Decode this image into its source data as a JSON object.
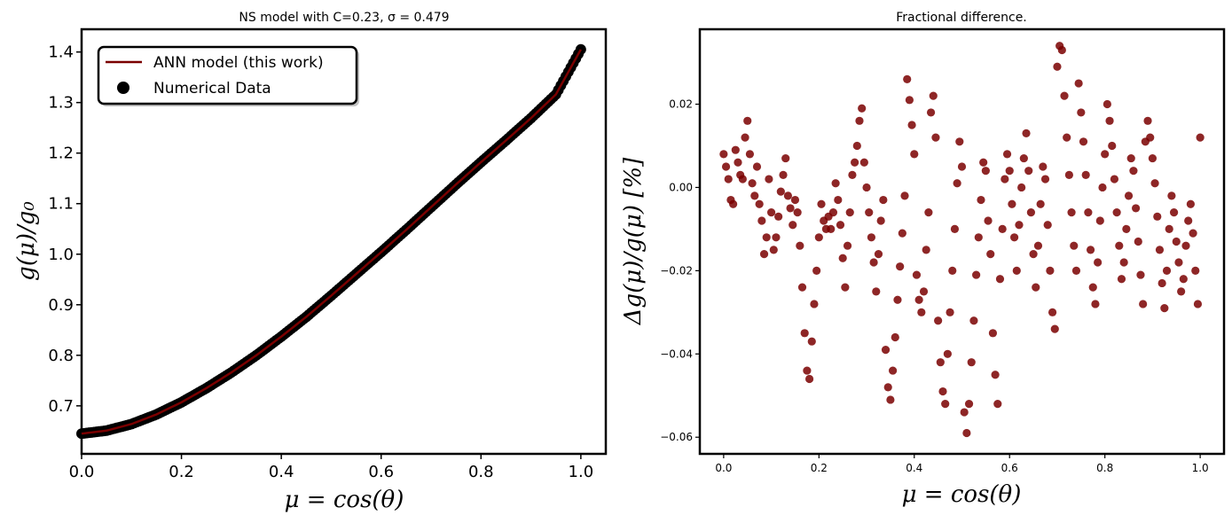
{
  "chart_data": [
    {
      "type": "line",
      "title": "NS model with C=0.23, σ = 0.479",
      "xlabel": "μ = cos(θ)",
      "ylabel": "g(μ)/g₀",
      "xlim": [
        0.0,
        1.05
      ],
      "ylim": [
        0.605,
        1.445
      ],
      "xticks": [
        "0.0",
        "0.2",
        "0.4",
        "0.6",
        "0.8",
        "1.0"
      ],
      "yticks": [
        "0.7",
        "0.8",
        "0.9",
        "1.0",
        "1.1",
        "1.2",
        "1.3",
        "1.4"
      ],
      "grid": false,
      "legend_position": "top-left",
      "series": [
        {
          "name": "ANN model (this work)",
          "kind": "line",
          "color": "#7a0000"
        },
        {
          "name": "Numerical Data",
          "kind": "scatter",
          "color": "#000000"
        }
      ],
      "curve_samples": {
        "x": [
          0.0,
          0.05,
          0.1,
          0.15,
          0.2,
          0.25,
          0.3,
          0.35,
          0.4,
          0.45,
          0.5,
          0.55,
          0.6,
          0.65,
          0.7,
          0.75,
          0.8,
          0.85,
          0.9,
          0.95,
          1.0
        ],
        "y": [
          0.645,
          0.651,
          0.664,
          0.683,
          0.707,
          0.735,
          0.766,
          0.8,
          0.837,
          0.876,
          0.918,
          0.961,
          1.004,
          1.048,
          1.093,
          1.138,
          1.182,
          1.225,
          1.269,
          1.316,
          1.405
        ]
      }
    },
    {
      "type": "scatter",
      "title": "Fractional difference.",
      "xlabel": "μ = cos(θ)",
      "ylabel": "Δg(μ)/g(μ)  [%]",
      "xlim": [
        -0.05,
        1.05
      ],
      "ylim": [
        -0.064,
        0.038
      ],
      "xticks": [
        "0.0",
        "0.2",
        "0.4",
        "0.6",
        "0.8",
        "1.0"
      ],
      "yticks": [
        "−0.06",
        "−0.04",
        "−0.02",
        "0.00",
        "0.02"
      ],
      "grid": false,
      "point_color": "#7a0000",
      "points": [
        [
          0.0,
          0.008
        ],
        [
          0.005,
          0.005
        ],
        [
          0.01,
          0.002
        ],
        [
          0.015,
          -0.003
        ],
        [
          0.02,
          -0.004
        ],
        [
          0.025,
          0.009
        ],
        [
          0.03,
          0.006
        ],
        [
          0.035,
          0.003
        ],
        [
          0.04,
          0.002
        ],
        [
          0.045,
          0.012
        ],
        [
          0.05,
          0.016
        ],
        [
          0.055,
          0.008
        ],
        [
          0.06,
          0.001
        ],
        [
          0.065,
          -0.002
        ],
        [
          0.07,
          0.005
        ],
        [
          0.075,
          -0.004
        ],
        [
          0.08,
          -0.008
        ],
        [
          0.085,
          -0.016
        ],
        [
          0.09,
          -0.012
        ],
        [
          0.095,
          0.002
        ],
        [
          0.1,
          -0.006
        ],
        [
          0.105,
          -0.015
        ],
        [
          0.11,
          -0.012
        ],
        [
          0.115,
          -0.007
        ],
        [
          0.12,
          -0.001
        ],
        [
          0.125,
          0.003
        ],
        [
          0.13,
          0.007
        ],
        [
          0.135,
          -0.002
        ],
        [
          0.14,
          -0.005
        ],
        [
          0.145,
          -0.009
        ],
        [
          0.15,
          -0.003
        ],
        [
          0.155,
          -0.006
        ],
        [
          0.16,
          -0.014
        ],
        [
          0.165,
          -0.024
        ],
        [
          0.17,
          -0.035
        ],
        [
          0.175,
          -0.044
        ],
        [
          0.18,
          -0.046
        ],
        [
          0.185,
          -0.037
        ],
        [
          0.19,
          -0.028
        ],
        [
          0.195,
          -0.02
        ],
        [
          0.2,
          -0.012
        ],
        [
          0.205,
          -0.004
        ],
        [
          0.21,
          -0.008
        ],
        [
          0.215,
          -0.01
        ],
        [
          0.22,
          -0.007
        ],
        [
          0.225,
          -0.01
        ],
        [
          0.23,
          -0.006
        ],
        [
          0.235,
          0.001
        ],
        [
          0.24,
          -0.003
        ],
        [
          0.245,
          -0.009
        ],
        [
          0.25,
          -0.017
        ],
        [
          0.255,
          -0.024
        ],
        [
          0.26,
          -0.014
        ],
        [
          0.265,
          -0.006
        ],
        [
          0.27,
          0.003
        ],
        [
          0.275,
          0.006
        ],
        [
          0.28,
          0.01
        ],
        [
          0.285,
          0.016
        ],
        [
          0.29,
          0.019
        ],
        [
          0.295,
          0.006
        ],
        [
          0.3,
          0.0
        ],
        [
          0.305,
          -0.006
        ],
        [
          0.31,
          -0.012
        ],
        [
          0.315,
          -0.018
        ],
        [
          0.32,
          -0.025
        ],
        [
          0.325,
          -0.016
        ],
        [
          0.33,
          -0.008
        ],
        [
          0.335,
          -0.003
        ],
        [
          0.34,
          -0.039
        ],
        [
          0.345,
          -0.048
        ],
        [
          0.35,
          -0.051
        ],
        [
          0.355,
          -0.044
        ],
        [
          0.36,
          -0.036
        ],
        [
          0.365,
          -0.027
        ],
        [
          0.37,
          -0.019
        ],
        [
          0.375,
          -0.011
        ],
        [
          0.38,
          -0.002
        ],
        [
          0.385,
          0.026
        ],
        [
          0.39,
          0.021
        ],
        [
          0.395,
          0.015
        ],
        [
          0.4,
          0.008
        ],
        [
          0.405,
          -0.021
        ],
        [
          0.41,
          -0.027
        ],
        [
          0.415,
          -0.03
        ],
        [
          0.42,
          -0.025
        ],
        [
          0.425,
          -0.015
        ],
        [
          0.43,
          -0.006
        ],
        [
          0.435,
          0.018
        ],
        [
          0.44,
          0.022
        ],
        [
          0.445,
          0.012
        ],
        [
          0.45,
          -0.032
        ],
        [
          0.455,
          -0.042
        ],
        [
          0.46,
          -0.049
        ],
        [
          0.465,
          -0.052
        ],
        [
          0.47,
          -0.04
        ],
        [
          0.475,
          -0.03
        ],
        [
          0.48,
          -0.02
        ],
        [
          0.485,
          -0.01
        ],
        [
          0.49,
          0.001
        ],
        [
          0.495,
          0.011
        ],
        [
          0.5,
          0.005
        ],
        [
          0.505,
          -0.054
        ],
        [
          0.51,
          -0.059
        ],
        [
          0.515,
          -0.052
        ],
        [
          0.52,
          -0.042
        ],
        [
          0.525,
          -0.032
        ],
        [
          0.53,
          -0.021
        ],
        [
          0.535,
          -0.012
        ],
        [
          0.54,
          -0.003
        ],
        [
          0.545,
          0.006
        ],
        [
          0.55,
          0.004
        ],
        [
          0.555,
          -0.008
        ],
        [
          0.56,
          -0.016
        ],
        [
          0.565,
          -0.035
        ],
        [
          0.57,
          -0.045
        ],
        [
          0.575,
          -0.052
        ],
        [
          0.58,
          -0.022
        ],
        [
          0.585,
          -0.01
        ],
        [
          0.59,
          0.002
        ],
        [
          0.595,
          0.008
        ],
        [
          0.6,
          0.004
        ],
        [
          0.605,
          -0.004
        ],
        [
          0.61,
          -0.012
        ],
        [
          0.615,
          -0.02
        ],
        [
          0.62,
          -0.009
        ],
        [
          0.625,
          0.0
        ],
        [
          0.63,
          0.007
        ],
        [
          0.635,
          0.013
        ],
        [
          0.64,
          0.004
        ],
        [
          0.645,
          -0.006
        ],
        [
          0.65,
          -0.016
        ],
        [
          0.655,
          -0.024
        ],
        [
          0.66,
          -0.014
        ],
        [
          0.665,
          -0.004
        ],
        [
          0.67,
          0.005
        ],
        [
          0.675,
          0.002
        ],
        [
          0.68,
          -0.009
        ],
        [
          0.685,
          -0.02
        ],
        [
          0.69,
          -0.03
        ],
        [
          0.695,
          -0.034
        ],
        [
          0.7,
          0.029
        ],
        [
          0.705,
          0.034
        ],
        [
          0.71,
          0.033
        ],
        [
          0.715,
          0.022
        ],
        [
          0.72,
          0.012
        ],
        [
          0.725,
          0.003
        ],
        [
          0.73,
          -0.006
        ],
        [
          0.735,
          -0.014
        ],
        [
          0.74,
          -0.02
        ],
        [
          0.745,
          0.025
        ],
        [
          0.75,
          0.018
        ],
        [
          0.755,
          0.011
        ],
        [
          0.76,
          0.003
        ],
        [
          0.765,
          -0.006
        ],
        [
          0.77,
          -0.015
        ],
        [
          0.775,
          -0.024
        ],
        [
          0.78,
          -0.028
        ],
        [
          0.785,
          -0.018
        ],
        [
          0.79,
          -0.008
        ],
        [
          0.795,
          0.0
        ],
        [
          0.8,
          0.008
        ],
        [
          0.805,
          0.02
        ],
        [
          0.81,
          0.016
        ],
        [
          0.815,
          0.01
        ],
        [
          0.82,
          0.002
        ],
        [
          0.825,
          -0.006
        ],
        [
          0.83,
          -0.014
        ],
        [
          0.835,
          -0.022
        ],
        [
          0.84,
          -0.018
        ],
        [
          0.845,
          -0.01
        ],
        [
          0.85,
          -0.002
        ],
        [
          0.855,
          0.007
        ],
        [
          0.86,
          0.004
        ],
        [
          0.865,
          -0.005
        ],
        [
          0.87,
          -0.013
        ],
        [
          0.875,
          -0.021
        ],
        [
          0.88,
          -0.028
        ],
        [
          0.885,
          0.011
        ],
        [
          0.89,
          0.016
        ],
        [
          0.895,
          0.012
        ],
        [
          0.9,
          0.007
        ],
        [
          0.905,
          0.001
        ],
        [
          0.91,
          -0.007
        ],
        [
          0.915,
          -0.015
        ],
        [
          0.92,
          -0.023
        ],
        [
          0.925,
          -0.029
        ],
        [
          0.93,
          -0.02
        ],
        [
          0.935,
          -0.01
        ],
        [
          0.94,
          -0.002
        ],
        [
          0.945,
          -0.006
        ],
        [
          0.95,
          -0.013
        ],
        [
          0.955,
          -0.018
        ],
        [
          0.96,
          -0.025
        ],
        [
          0.965,
          -0.022
        ],
        [
          0.97,
          -0.014
        ],
        [
          0.975,
          -0.008
        ],
        [
          0.98,
          -0.004
        ],
        [
          0.985,
          -0.011
        ],
        [
          0.99,
          -0.02
        ],
        [
          0.995,
          -0.028
        ],
        [
          1.0,
          0.012
        ]
      ]
    }
  ]
}
